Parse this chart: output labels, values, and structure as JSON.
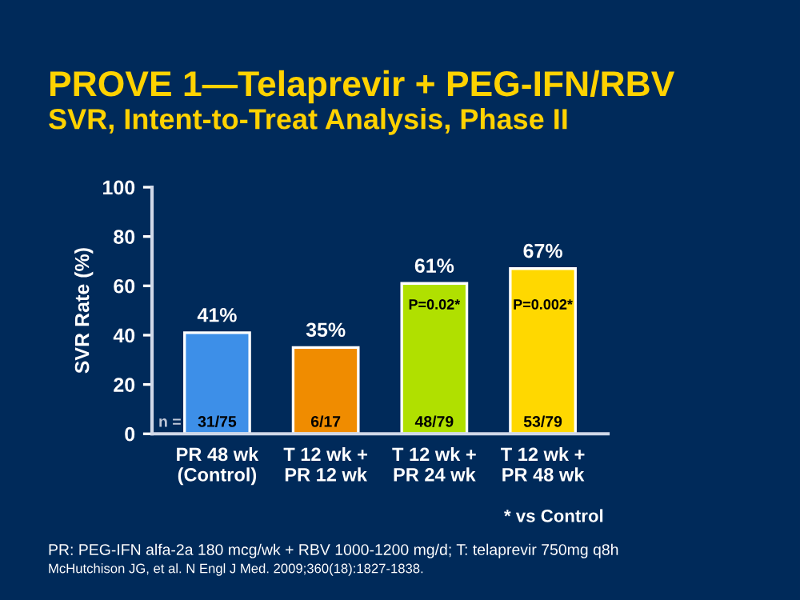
{
  "chart_data": {
    "type": "bar",
    "title": "PROVE 1—Telaprevir + PEG-IFN/RBV",
    "subtitle": "SVR, Intent-to-Treat Analysis, Phase II",
    "ylabel": "SVR Rate (%)",
    "categories": [
      "PR 48 wk\n(Control)",
      "T 12 wk +\nPR 12 wk",
      "T 12 wk +\nPR 24 wk",
      "T 12 wk +\nPR 48 wk"
    ],
    "values": [
      41,
      35,
      61,
      67
    ],
    "colors": [
      "#3d8fe8",
      "#f08c00",
      "#b0e000",
      "#ffd800"
    ],
    "value_labels": [
      "41%",
      "35%",
      "61%",
      "67%"
    ],
    "ylim": [
      0,
      100
    ],
    "yticks": [
      0,
      20,
      40,
      60,
      80,
      100
    ],
    "grid": false,
    "legend": false,
    "annotations": [
      {
        "text": "31/75",
        "x": "PR 48 wk\n(Control)",
        "y": 0
      },
      {
        "text": "6/17",
        "x": "T 12 wk +\nPR 12 wk",
        "y": 0
      },
      {
        "text": "48/79",
        "x": "T 12 wk +\nPR 24 wk",
        "y": 0
      },
      {
        "text": "53/79",
        "x": "T 12 wk +\nPR 48 wk",
        "y": 0
      },
      "P=0.02*",
      "P=0.002*",
      "n =",
      "* vs Control",
      "PR: PEG-IFN alfa-2a 180 mcg/wk + RBV 1000-1200 mg/d; T: telaprevir 750mg q8h",
      "McHutchison JG, et al. N Engl J Med. 2009;360(18):1827-1838."
    ]
  }
}
